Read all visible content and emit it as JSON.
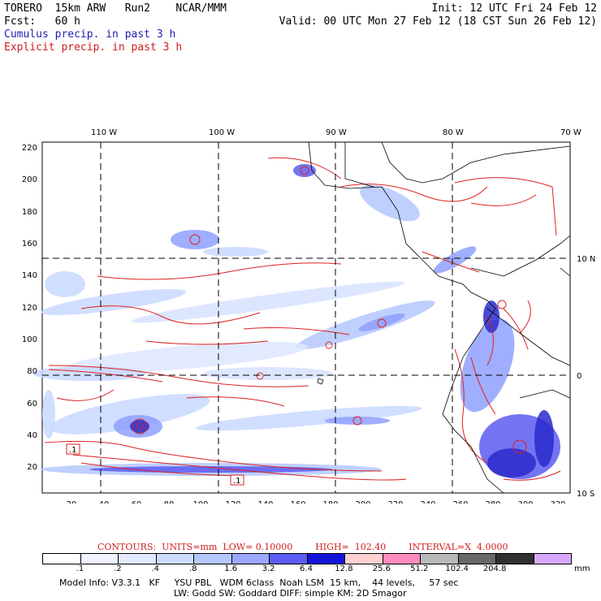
{
  "header": {
    "line1_left": "TORERO  15km ARW   Run2    NCAR/MMM",
    "line1_right": "Init: 12 UTC Fri 24 Feb 12",
    "line2_left": "Fcst:   60 h",
    "line2_right": "Valid: 00 UTC Mon 27 Feb 12 (18 CST Sun 26 Feb 12)",
    "line3": "Cumulus precip. in past 3 h",
    "line4": "Explicit precip. in past 3 h"
  },
  "map": {
    "lon_labels": [
      "110 W",
      "100 W",
      "90 W",
      "80 W",
      "70 W"
    ],
    "lat_labels": [
      "10 N",
      "0",
      "10 S"
    ],
    "x_ticks": [
      "20",
      "40",
      "60",
      "80",
      "100",
      "120",
      "140",
      "160",
      "180",
      "200",
      "220",
      "240",
      "260",
      "280",
      "300",
      "320"
    ],
    "y_ticks": [
      "220",
      "200",
      "180",
      "160",
      "140",
      "120",
      "100",
      "80",
      "60",
      "40",
      "20"
    ],
    "contour_labels": [
      ".1",
      ".1"
    ],
    "colors": {
      "explicit_contour": "#e02020",
      "coast": "#000000",
      "cumulus_light": "#c8d8ff",
      "cumulus_mid": "#8ea0ff",
      "cumulus_dark": "#2a2acc"
    }
  },
  "legend": {
    "contours_text": "CONTOURS:  UNITS=mm  LOW= 0.10000",
    "high_text": "HIGH=  102.40",
    "interval_text": "INTERVAL=X  4.0000",
    "levels": [
      ".1",
      ".2",
      ".4",
      ".8",
      "1.6",
      "3.2",
      "6.4",
      "12.8",
      "25.6",
      "51.2",
      "102.4",
      "204.8"
    ],
    "unit": "mm",
    "colors": [
      "#ffffff",
      "#f0f4ff",
      "#e2eaff",
      "#ccdcff",
      "#b4c8ff",
      "#9aa8ff",
      "#5c5cf0",
      "#1414d8",
      "#ffd0d0",
      "#ff8cc0",
      "#b8b8b8",
      "#686868",
      "#303030",
      "#d8a8ff"
    ]
  },
  "footer": {
    "line1": "Model Info: V3.3.1   KF     YSU PBL   WDM 6class  Noah LSM  15 km,    44 levels,     57 sec",
    "line2": "LW: Godd SW: Goddard DIFF: simple KM: 2D Smagor"
  }
}
